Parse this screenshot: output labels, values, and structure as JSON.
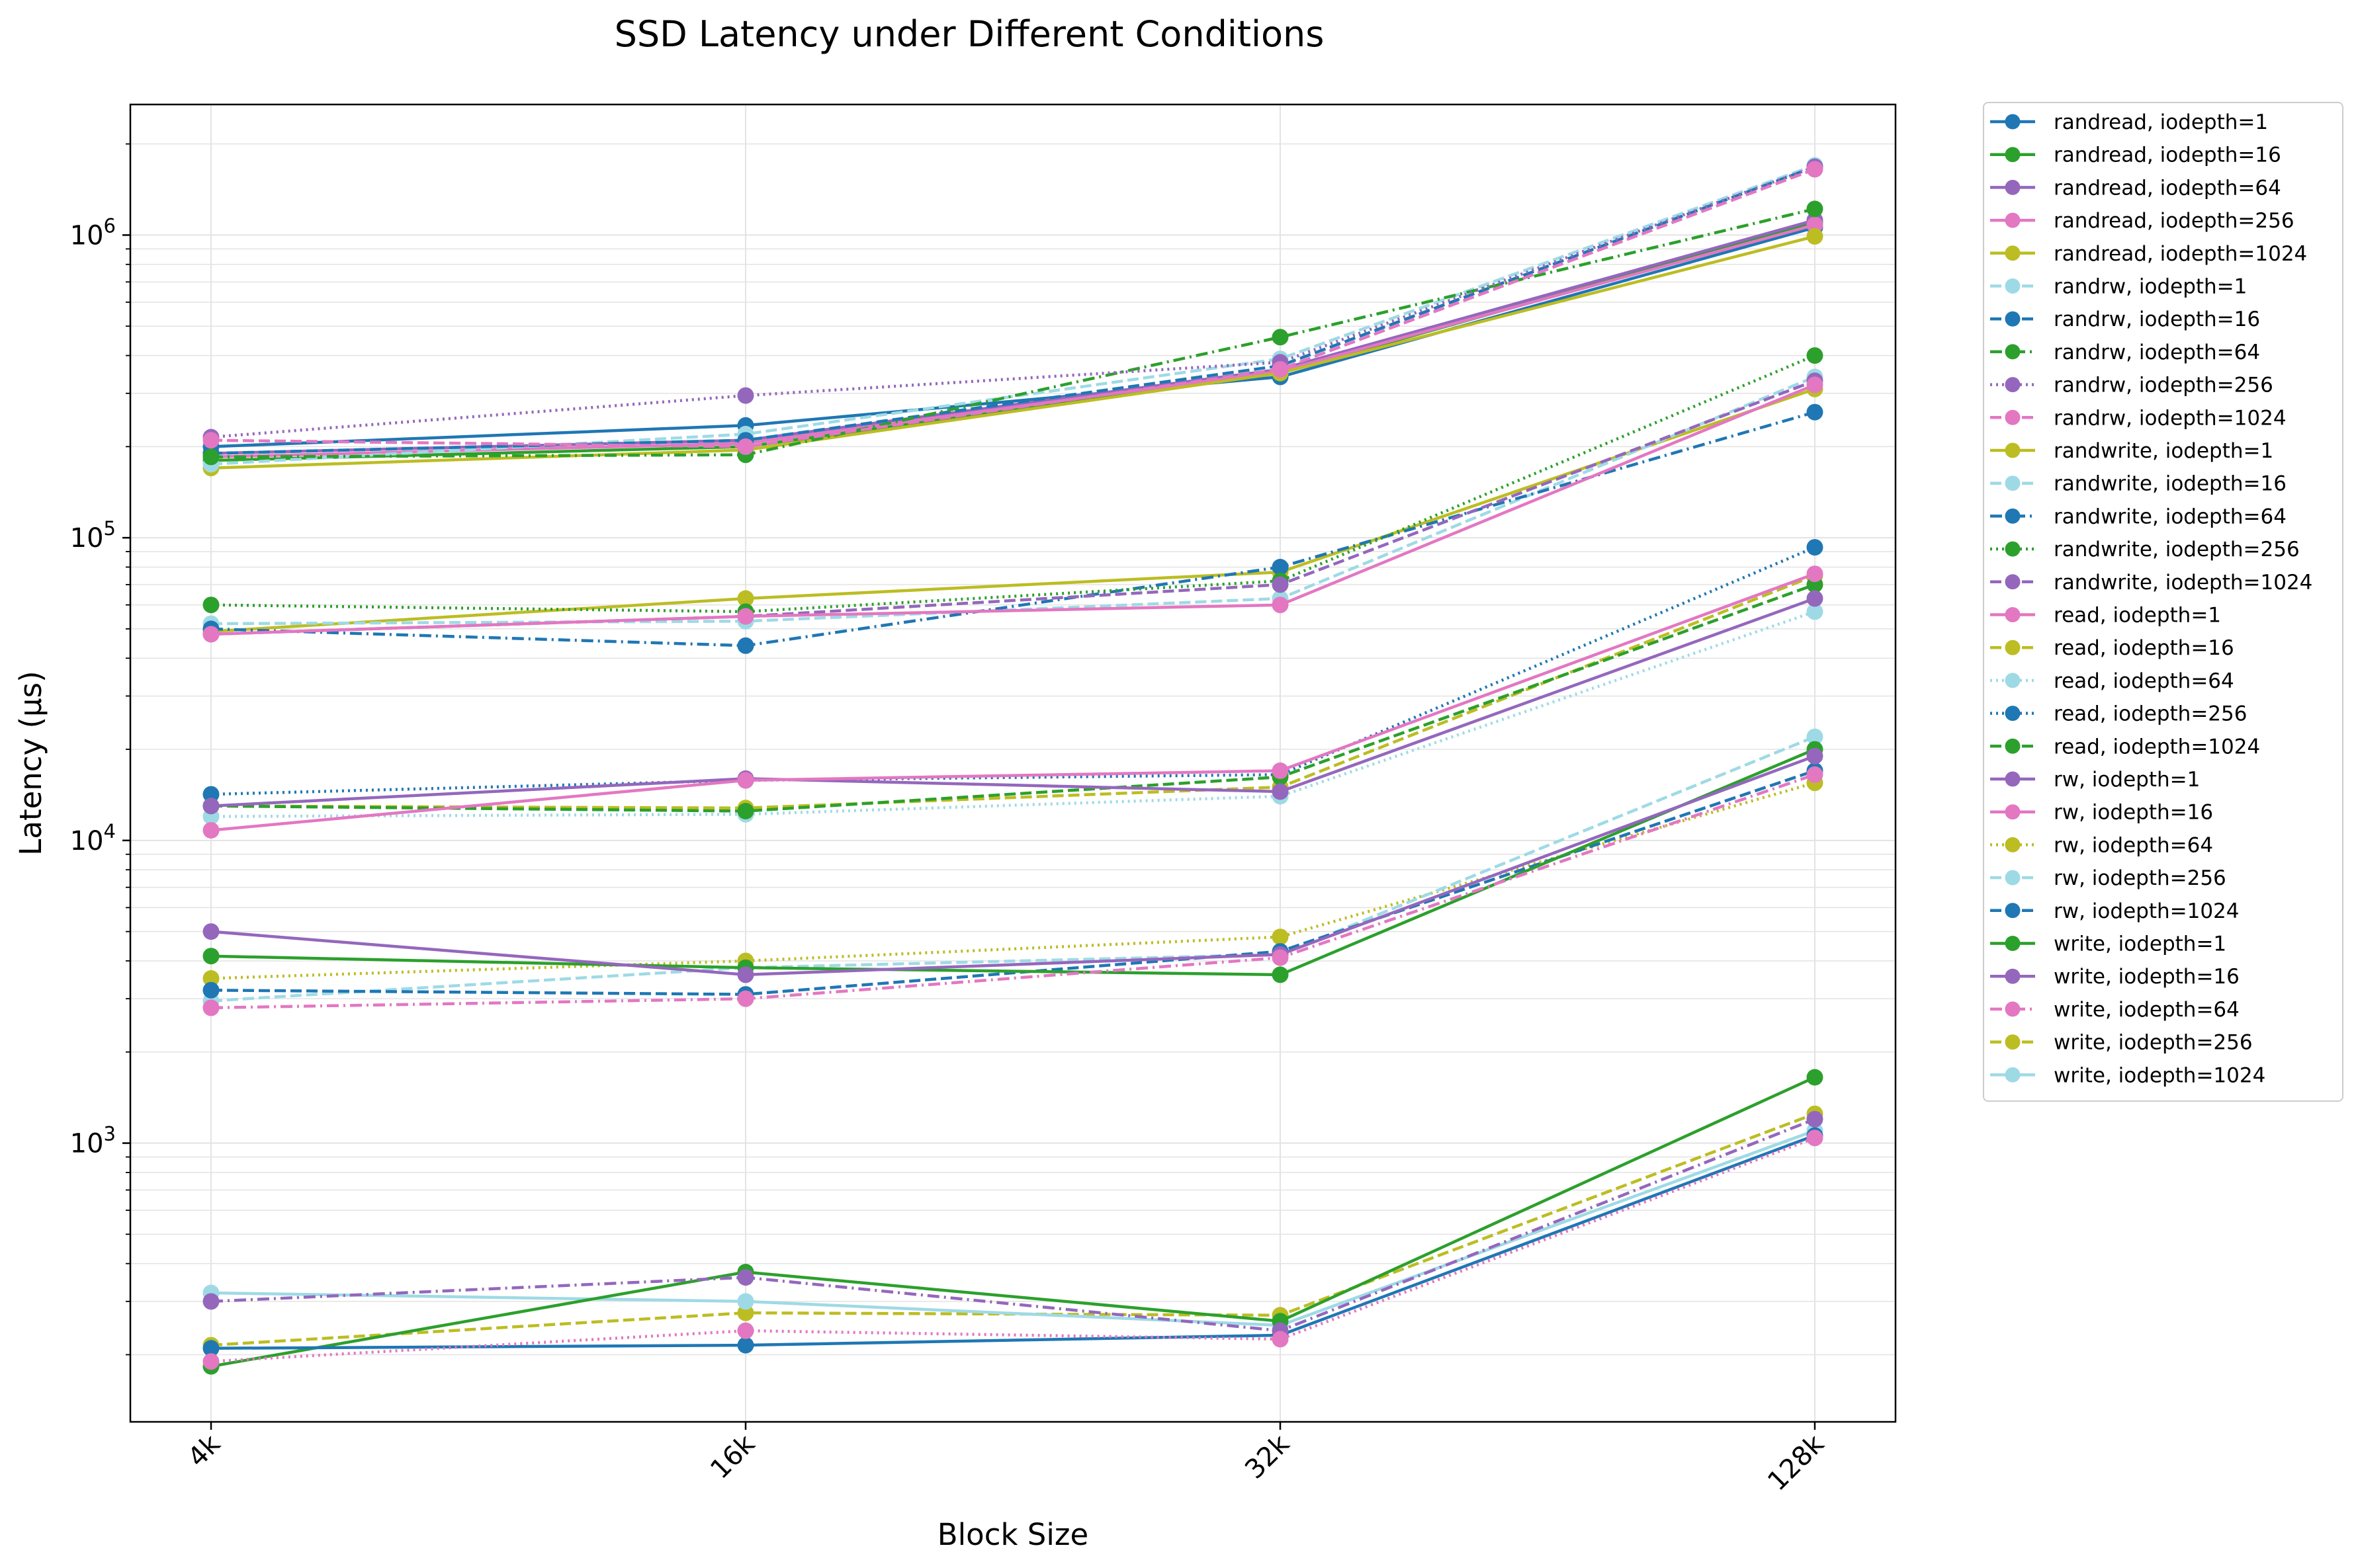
{
  "chart_data": {
    "type": "line",
    "title": "SSD Latency under Different Conditions",
    "xlabel": "Block Size",
    "ylabel": "Latency (µs)",
    "yscale": "log",
    "ylim": [
      120,
      2700000
    ],
    "y_ticks": [
      {
        "value": 1000,
        "base": "10",
        "exp": "3"
      },
      {
        "value": 10000,
        "base": "10",
        "exp": "4"
      },
      {
        "value": 100000,
        "base": "10",
        "exp": "5"
      },
      {
        "value": 1000000,
        "base": "10",
        "exp": "6"
      }
    ],
    "grid": true,
    "legend_position": "outside right",
    "categories": [
      "4k",
      "16k",
      "32k",
      "128k"
    ],
    "series": [
      {
        "name": "randread, iodepth=1",
        "color": "#1f77b4",
        "dash": "solid",
        "values": [
          200000.0,
          235000.0,
          340000.0,
          1060000.0
        ]
      },
      {
        "name": "randread, iodepth=16",
        "color": "#2ca02c",
        "dash": "solid",
        "values": [
          180000.0,
          200000.0,
          350000.0,
          1100000.0
        ]
      },
      {
        "name": "randread, iodepth=64",
        "color": "#9467bd",
        "dash": "solid",
        "values": [
          190000.0,
          210000.0,
          360000.0,
          1120000.0
        ]
      },
      {
        "name": "randread, iodepth=256",
        "color": "#e377c2",
        "dash": "solid",
        "values": [
          185000.0,
          205000.0,
          355000.0,
          1080000.0
        ]
      },
      {
        "name": "randread, iodepth=1024",
        "color": "#bcbd22",
        "dash": "solid",
        "values": [
          170000.0,
          195000.0,
          350000.0,
          990000.0
        ]
      },
      {
        "name": "randrw, iodepth=1",
        "color": "#9edae5",
        "dash": "dashed",
        "values": [
          175000.0,
          220000.0,
          390000.0,
          1700000.0
        ]
      },
      {
        "name": "randrw, iodepth=16",
        "color": "#1f77b4",
        "dash": "dashed",
        "values": [
          190000.0,
          210000.0,
          370000.0,
          1680000.0
        ]
      },
      {
        "name": "randrw, iodepth=64",
        "color": "#2ca02c",
        "dash": "dashdot",
        "values": [
          185000.0,
          188000.0,
          460000.0,
          1220000.0
        ]
      },
      {
        "name": "randrw, iodepth=256",
        "color": "#9467bd",
        "dash": "dotted",
        "values": [
          215000.0,
          295000.0,
          380000.0,
          1680000.0
        ]
      },
      {
        "name": "randrw, iodepth=1024",
        "color": "#e377c2",
        "dash": "dashed",
        "values": [
          210000.0,
          200000.0,
          360000.0,
          1650000.0
        ]
      },
      {
        "name": "randwrite, iodepth=1",
        "color": "#bcbd22",
        "dash": "solid",
        "values": [
          49000.0,
          63000.0,
          77000.0,
          310000.0
        ]
      },
      {
        "name": "randwrite, iodepth=16",
        "color": "#9edae5",
        "dash": "dashed",
        "values": [
          52000.0,
          53000.0,
          63000.0,
          340000.0
        ]
      },
      {
        "name": "randwrite, iodepth=64",
        "color": "#1f77b4",
        "dash": "dashdot",
        "values": [
          50000.0,
          44000.0,
          80000.0,
          260000.0
        ]
      },
      {
        "name": "randwrite, iodepth=256",
        "color": "#2ca02c",
        "dash": "dotted",
        "values": [
          60000.0,
          57000.0,
          72000.0,
          400000.0
        ]
      },
      {
        "name": "randwrite, iodepth=1024",
        "color": "#9467bd",
        "dash": "dashed",
        "values": [
          48000.0,
          55000.0,
          70000.0,
          330000.0
        ]
      },
      {
        "name": "read, iodepth=1",
        "color": "#e377c2",
        "dash": "solid",
        "values": [
          48000.0,
          55000.0,
          60000.0,
          320000.0
        ]
      },
      {
        "name": "read, iodepth=16",
        "color": "#bcbd22",
        "dash": "dashed",
        "values": [
          13000.0,
          12800.0,
          15000.0,
          75000.0
        ]
      },
      {
        "name": "read, iodepth=64",
        "color": "#9edae5",
        "dash": "dotted",
        "values": [
          12000.0,
          12200.0,
          14000.0,
          57000.0
        ]
      },
      {
        "name": "read, iodepth=256",
        "color": "#1f77b4",
        "dash": "dotted",
        "values": [
          14200.0,
          15800.0,
          16500.0,
          93000.0
        ]
      },
      {
        "name": "read, iodepth=1024",
        "color": "#2ca02c",
        "dash": "dashed",
        "values": [
          13000.0,
          12500.0,
          16200.0,
          70000.0
        ]
      },
      {
        "name": "rw, iodepth=1",
        "color": "#9467bd",
        "dash": "solid",
        "values": [
          13000.0,
          16000.0,
          14500.0,
          63000.0
        ]
      },
      {
        "name": "rw, iodepth=16",
        "color": "#e377c2",
        "dash": "solid",
        "values": [
          10800.0,
          15800.0,
          17000.0,
          76000.0
        ]
      },
      {
        "name": "rw, iodepth=64",
        "color": "#bcbd22",
        "dash": "dotted",
        "values": [
          3500.0,
          4000.0,
          4800.0,
          15500.0
        ]
      },
      {
        "name": "rw, iodepth=256",
        "color": "#9edae5",
        "dash": "dashed",
        "values": [
          2950.0,
          3800.0,
          4200.0,
          22000.0
        ]
      },
      {
        "name": "rw, iodepth=1024",
        "color": "#1f77b4",
        "dash": "dashed",
        "values": [
          3200.0,
          3100.0,
          4300.0,
          17000.0
        ]
      },
      {
        "name": "write, iodepth=1",
        "color": "#2ca02c",
        "dash": "solid",
        "values": [
          4150.0,
          3800.0,
          3600.0,
          20000.0
        ]
      },
      {
        "name": "write, iodepth=16",
        "color": "#9467bd",
        "dash": "solid",
        "values": [
          5000.0,
          3600.0,
          4200.0,
          19000.0
        ]
      },
      {
        "name": "write, iodepth=64",
        "color": "#e377c2",
        "dash": "dashdot",
        "values": [
          2800.0,
          3000.0,
          4100.0,
          16500.0
        ]
      },
      {
        "name": "write, iodepth=256",
        "color": "#bcbd22",
        "dash": "dashed",
        "values": [
          215,
          275,
          270,
          1250
        ]
      },
      {
        "name": "write, iodepth=1024",
        "color": "#9edae5",
        "dash": "solid",
        "values": [
          320,
          300,
          250,
          1100
        ]
      }
    ],
    "extra_lines": [
      {
        "color": "#2ca02c",
        "dash": "solid",
        "values": [
          183,
          375,
          258,
          1650
        ]
      },
      {
        "color": "#1f77b4",
        "dash": "solid",
        "values": [
          210,
          215,
          232,
          1060
        ]
      },
      {
        "color": "#9467bd",
        "dash": "dashdot",
        "values": [
          300,
          360,
          240,
          1200
        ]
      },
      {
        "color": "#e377c2",
        "dash": "dotted",
        "values": [
          190,
          240,
          225,
          1040
        ]
      }
    ]
  }
}
